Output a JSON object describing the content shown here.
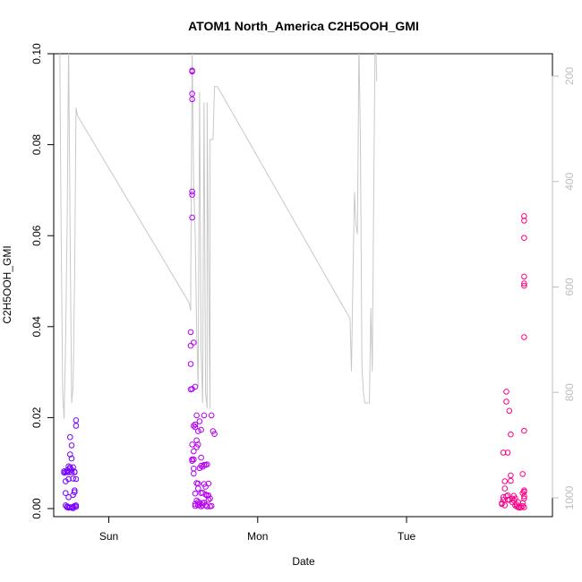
{
  "chart_data": {
    "type": "scatter",
    "title": "ATOM1 North_America C2H5OOH_GMI",
    "xlabel": "Date",
    "ylabel": "C2H5OOH_GMI",
    "x_tick_labels": [
      "Sun",
      "Mon",
      "Tue"
    ],
    "x_tick_days": [
      0,
      1,
      2
    ],
    "xlim_days": [
      -0.37,
      2.98
    ],
    "ylim": [
      0,
      0.1
    ],
    "y_ticks": [
      0.0,
      0.02,
      0.04,
      0.06,
      0.08,
      0.1
    ],
    "y_tick_labels": [
      "0.00",
      "0.02",
      "0.04",
      "0.06",
      "0.08",
      "0.10"
    ],
    "secondary_y": {
      "ticks": [
        200,
        400,
        600,
        800,
        1000
      ],
      "tick_labels": [
        "200",
        "400",
        "600",
        "800",
        "1000"
      ],
      "range": [
        1010,
        140
      ],
      "reversed": true,
      "color": "#bdbdbd"
    },
    "grid": false,
    "series": [
      {
        "type": "scatter",
        "x": [
          -0.3,
          -0.3,
          -0.29,
          -0.29,
          -0.29,
          -0.29,
          -0.28,
          -0.28,
          -0.28,
          -0.28,
          -0.27,
          -0.27,
          -0.27,
          -0.27,
          -0.27,
          -0.26,
          -0.26,
          -0.26,
          -0.26,
          -0.26,
          -0.25,
          -0.25,
          -0.25,
          -0.25,
          -0.25,
          -0.24,
          -0.24,
          -0.24,
          -0.24,
          -0.24,
          -0.23,
          -0.23,
          -0.23,
          -0.23,
          -0.23,
          -0.22,
          -0.22,
          -0.22,
          -0.22,
          -0.22
        ],
        "y": [
          0.0082,
          0.0079,
          0.006,
          0.008,
          0.0034,
          0.0007,
          0.0081,
          0.0005,
          0.0003,
          0.0084,
          0.008,
          0.0002,
          0.0025,
          0.0065,
          0.0093,
          0.0088,
          0.0119,
          0.0091,
          0.0003,
          0.0157,
          0.0085,
          0.008,
          0.0002,
          0.011,
          0.0139,
          0.0091,
          0.0066,
          0.003,
          0.0004,
          0.0001,
          0.0081,
          0.008,
          0.0036,
          0.0006,
          0.004,
          0.0065,
          0.0182,
          0.0007,
          0.0194,
          0.0004
        ]
      },
      {
        "type": "scatter",
        "x": [
          0.55,
          0.55,
          0.55,
          0.55,
          0.56,
          0.56,
          0.56,
          0.56,
          0.56,
          0.56,
          0.56,
          0.56,
          0.56,
          0.56,
          0.56,
          0.57,
          0.57,
          0.57,
          0.57,
          0.57,
          0.57,
          0.58,
          0.58,
          0.58,
          0.58,
          0.58,
          0.58,
          0.59,
          0.59,
          0.59,
          0.59,
          0.59,
          0.6,
          0.6,
          0.6,
          0.6,
          0.6,
          0.6,
          0.61,
          0.61,
          0.61,
          0.61,
          0.62,
          0.62,
          0.62,
          0.62,
          0.62,
          0.63,
          0.63,
          0.63,
          0.63,
          0.64,
          0.64,
          0.64,
          0.64,
          0.65,
          0.65,
          0.65,
          0.65,
          0.66,
          0.66,
          0.66,
          0.67,
          0.67,
          0.67,
          0.68,
          0.68,
          0.69,
          0.69,
          0.7,
          0.71
        ],
        "y": [
          0.0262,
          0.0318,
          0.0358,
          0.0388,
          0.0108,
          0.0141,
          0.0263,
          0.064,
          0.069,
          0.0697,
          0.09,
          0.0912,
          0.0961,
          0.0963,
          0.0105,
          0.0365,
          0.0108,
          0.0126,
          0.0088,
          0.0077,
          0.0182,
          0.0185,
          0.001,
          0.0006,
          0.0033,
          0.0268,
          0.0179,
          0.015,
          0.0135,
          0.0205,
          0.0056,
          0.0018,
          0.017,
          0.0015,
          0.0007,
          0.0044,
          0.0141,
          0.0055,
          0.0089,
          0.0013,
          0.0192,
          0.0009,
          0.0094,
          0.0034,
          0.0005,
          0.0112,
          0.0173,
          0.0092,
          0.0035,
          0.0012,
          0.0007,
          0.0096,
          0.0054,
          0.0013,
          0.0205,
          0.0096,
          0.0048,
          0.0031,
          0.0007,
          0.0097,
          0.0029,
          0.0005,
          0.0055,
          0.0019,
          0.0029,
          0.0005,
          0.0022,
          0.0006,
          0.0205,
          0.017,
          0.0164
        ]
      },
      {
        "type": "scatter",
        "x": [
          2.64,
          2.64,
          2.65,
          2.65,
          2.65,
          2.66,
          2.66,
          2.66,
          2.67,
          2.67,
          2.67,
          2.68,
          2.68,
          2.68,
          2.69,
          2.69,
          2.7,
          2.7,
          2.7,
          2.71,
          2.71,
          2.72,
          2.72,
          2.73,
          2.73,
          2.74,
          2.74,
          2.75,
          2.75,
          2.76,
          2.77,
          2.78,
          2.78,
          2.78,
          2.78,
          2.79,
          2.79,
          2.79,
          2.79,
          2.79,
          2.79,
          2.79,
          2.79,
          2.79,
          2.79,
          2.79,
          2.79,
          2.79
        ],
        "y": [
          0.001,
          0.0012,
          0.0025,
          0.0019,
          0.0123,
          0.0044,
          0.006,
          0.0007,
          0.0027,
          0.0235,
          0.0257,
          0.0123,
          0.0029,
          0.0019,
          0.0215,
          0.0019,
          0.0163,
          0.0061,
          0.0073,
          0.0022,
          0.0014,
          0.0028,
          0.0018,
          0.0022,
          0.0007,
          0.0005,
          0.0009,
          0.0014,
          0.0003,
          0.0002,
          0.0003,
          0.0012,
          0.0006,
          0.0034,
          0.0076,
          0.0022,
          0.0027,
          0.0037,
          0.004,
          0.0171,
          0.0377,
          0.049,
          0.0495,
          0.051,
          0.0595,
          0.0633,
          0.0643,
          0.0003
        ]
      },
      {
        "type": "line",
        "axis": "secondary",
        "color": "#c8c8c8",
        "x": [
          -0.33,
          -0.32,
          -0.31,
          -0.3,
          -0.29,
          -0.28,
          -0.27,
          -0.26,
          -0.25,
          -0.24,
          -0.23,
          -0.22,
          -0.21,
          0.54,
          0.55,
          0.55,
          0.56,
          0.56,
          0.57,
          0.58,
          0.59,
          0.6,
          0.61,
          0.62,
          0.63,
          0.64,
          0.65,
          0.66,
          0.66,
          0.67,
          0.68,
          0.68,
          0.69,
          0.7,
          0.71,
          0.72,
          0.73,
          1.62,
          1.63,
          1.64,
          1.65,
          1.66,
          1.67,
          1.68,
          1.69,
          1.7,
          1.71,
          1.72,
          1.73,
          1.74,
          1.75,
          1.76,
          1.77,
          1.78,
          1.79,
          1.8
        ],
        "y": [
          140,
          500,
          800,
          850,
          700,
          480,
          140,
          500,
          820,
          790,
          590,
          260,
          275,
          630,
          645,
          600,
          160,
          140,
          400,
          500,
          680,
          790,
          230,
          720,
          820,
          250,
          800,
          830,
          250,
          560,
          830,
          320,
          320,
          320,
          220,
          220,
          220,
          660,
          760,
          580,
          420,
          480,
          500,
          140,
          320,
          750,
          800,
          820,
          820,
          820,
          820,
          640,
          760,
          400,
          100,
          210
        ]
      }
    ]
  }
}
